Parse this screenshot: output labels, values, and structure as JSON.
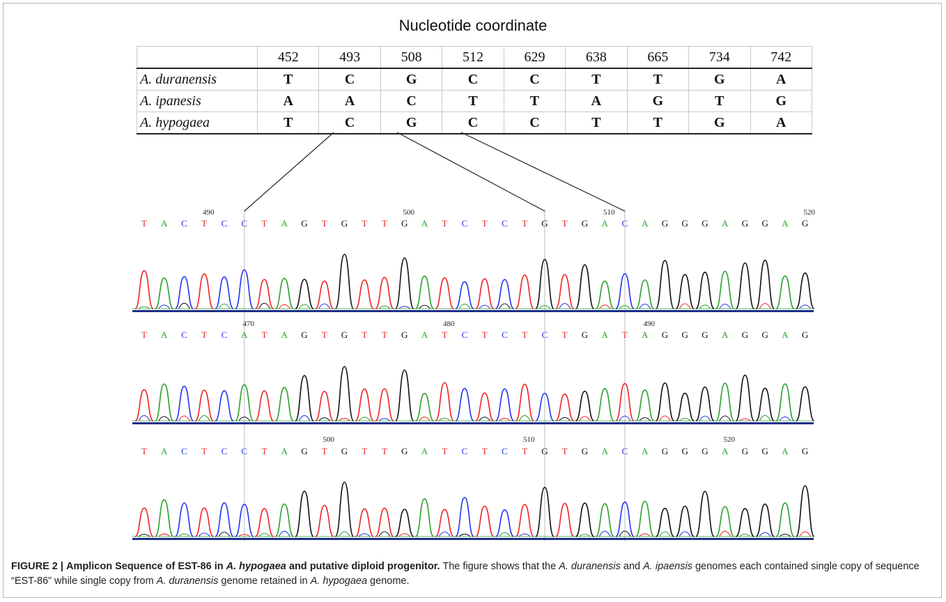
{
  "figure": {
    "heading": "Nucleotide coordinate",
    "caption": {
      "label": "FIGURE 2 |",
      "title_parts": [
        "Amplicon Sequence of EST-86 in ",
        "A. hypogaea",
        " and putative diploid progenitor."
      ],
      "text_parts": [
        " The figure shows that the ",
        "A. duranensis",
        " and ",
        "A. ipaensis",
        " genomes each contained single copy of sequence “EST-86” while single copy from ",
        "A. duranensis",
        " genome retained in ",
        "A. hypogaea",
        " genome."
      ]
    }
  },
  "snp_table": {
    "coordinates": [
      "452",
      "493",
      "508",
      "512",
      "629",
      "638",
      "665",
      "734",
      "742"
    ],
    "rows": [
      {
        "species": "A. duranensis",
        "bases": [
          "T",
          "C",
          "G",
          "C",
          "C",
          "T",
          "T",
          "G",
          "A"
        ]
      },
      {
        "species": "A. ipanesis",
        "bases": [
          "A",
          "A",
          "C",
          "T",
          "T",
          "A",
          "G",
          "T",
          "G"
        ]
      },
      {
        "species": "A. hypogaea",
        "bases": [
          "T",
          "C",
          "G",
          "C",
          "C",
          "T",
          "T",
          "G",
          "A"
        ]
      }
    ]
  },
  "chromatograms": [
    {
      "sequence": [
        "T",
        "A",
        "C",
        "T",
        "C",
        "C",
        "T",
        "A",
        "G",
        "T",
        "G",
        "T",
        "T",
        "G",
        "A",
        "T",
        "C",
        "T",
        "C",
        "T",
        "G",
        "T",
        "G",
        "A",
        "C",
        "A",
        "G",
        "G",
        "G",
        "A",
        "G",
        "G",
        "A",
        "G"
      ],
      "position_labels": [
        {
          "text": "490",
          "base_index": 3
        },
        {
          "text": "500",
          "base_index": 13
        },
        {
          "text": "510",
          "base_index": 23
        },
        {
          "text": "520",
          "base_index": 33
        }
      ]
    },
    {
      "sequence": [
        "T",
        "A",
        "C",
        "T",
        "C",
        "A",
        "T",
        "A",
        "G",
        "T",
        "G",
        "T",
        "T",
        "G",
        "A",
        "T",
        "C",
        "T",
        "C",
        "T",
        "C",
        "T",
        "G",
        "A",
        "T",
        "A",
        "G",
        "G",
        "G",
        "A",
        "G",
        "G",
        "A",
        "G"
      ],
      "position_labels": [
        {
          "text": "470",
          "base_index": 5
        },
        {
          "text": "480",
          "base_index": 15
        },
        {
          "text": "490",
          "base_index": 25
        }
      ]
    },
    {
      "sequence": [
        "T",
        "A",
        "C",
        "T",
        "C",
        "C",
        "T",
        "A",
        "G",
        "T",
        "G",
        "T",
        "T",
        "G",
        "A",
        "T",
        "C",
        "T",
        "C",
        "T",
        "G",
        "T",
        "G",
        "A",
        "C",
        "A",
        "G",
        "G",
        "G",
        "A",
        "G",
        "G",
        "A",
        "G"
      ],
      "position_labels": [
        {
          "text": "500",
          "base_index": 9
        },
        {
          "text": "510",
          "base_index": 19
        },
        {
          "text": "520",
          "base_index": 29
        }
      ]
    }
  ],
  "base_colors": {
    "A": "#2aa02a",
    "C": "#2233ee",
    "G": "#111111",
    "T": "#ee2222"
  },
  "highlighted_base_indices": [
    5,
    20,
    24
  ]
}
